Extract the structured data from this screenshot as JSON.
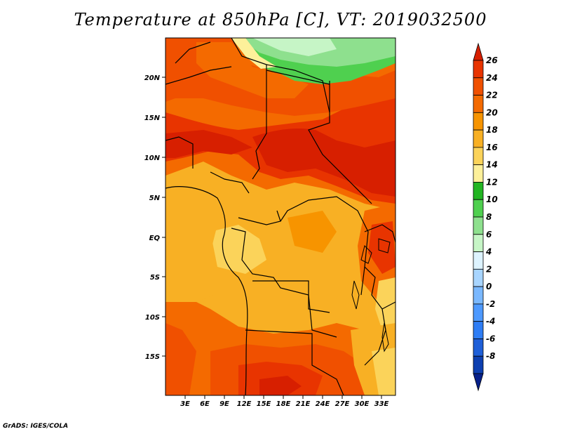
{
  "title": "Temperature at 850hPa [C], VT: 2019032500",
  "footer": "GrADS: IGES/COLA",
  "map": {
    "lon_labels": [
      "3E",
      "6E",
      "9E",
      "12E",
      "15E",
      "18E",
      "21E",
      "24E",
      "27E",
      "30E",
      "33E"
    ],
    "lat_labels": [
      "20N",
      "15N",
      "10N",
      "5N",
      "EQ",
      "5S",
      "10S",
      "15S"
    ]
  },
  "colorbar": {
    "labels": [
      "26",
      "24",
      "22",
      "20",
      "18",
      "16",
      "14",
      "12",
      "10",
      "8",
      "6",
      "4",
      "2",
      "0",
      "-2",
      "-4",
      "-6",
      "-8"
    ],
    "colors": [
      "#d71f00",
      "#e83400",
      "#f05000",
      "#f46a00",
      "#f79400",
      "#f8b024",
      "#fbd35a",
      "#fdf09a",
      "#22b522",
      "#4fd04f",
      "#8ee08e",
      "#c6f5c6",
      "#ddf3ff",
      "#a8d5ff",
      "#7ab8ff",
      "#4d99ff",
      "#2e7df5",
      "#1e5fd8",
      "#0d3fb0",
      "#06208a"
    ]
  }
}
